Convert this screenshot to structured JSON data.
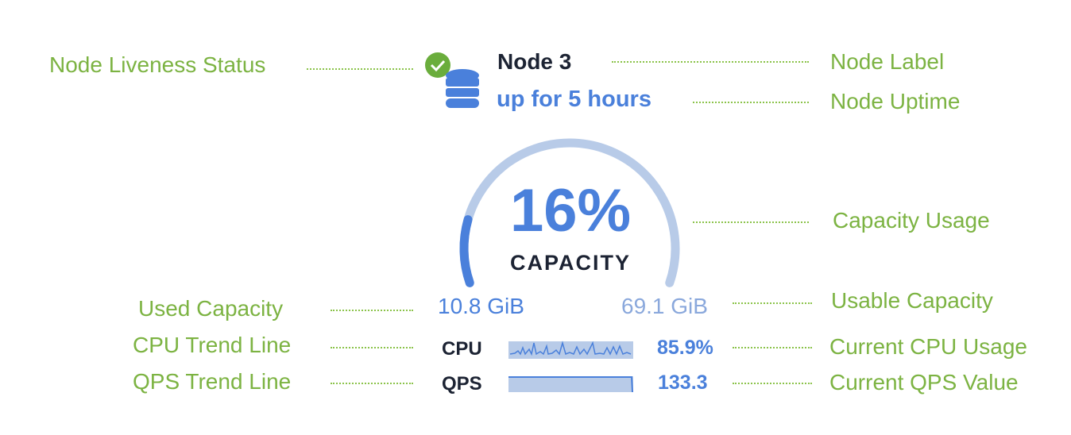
{
  "annotations": {
    "liveness": "Node Liveness Status",
    "label": "Node Label",
    "uptime": "Node Uptime",
    "capacity_usage": "Capacity Usage",
    "used_capacity": "Used Capacity",
    "usable_capacity": "Usable Capacity",
    "cpu_trend": "CPU Trend Line",
    "cpu_current": "Current CPU Usage",
    "qps_trend": "QPS Trend Line",
    "qps_current": "Current QPS Value"
  },
  "node": {
    "name": "Node 3",
    "uptime": "up for 5 hours",
    "status": "live",
    "icon": "database-icon"
  },
  "capacity": {
    "percent_label": "16%",
    "percent": 16,
    "caption": "CAPACITY",
    "used": "10.8 GiB",
    "usable": "69.1 GiB"
  },
  "metrics": {
    "cpu_label": "CPU",
    "cpu_value": "85.9%",
    "qps_label": "QPS",
    "qps_value": "133.3"
  },
  "colors": {
    "annotation": "#7cb342",
    "accent": "#4a80db",
    "track": "#b8cbe8",
    "text_dark": "#1c2333",
    "status_ok": "#6aad3c"
  }
}
